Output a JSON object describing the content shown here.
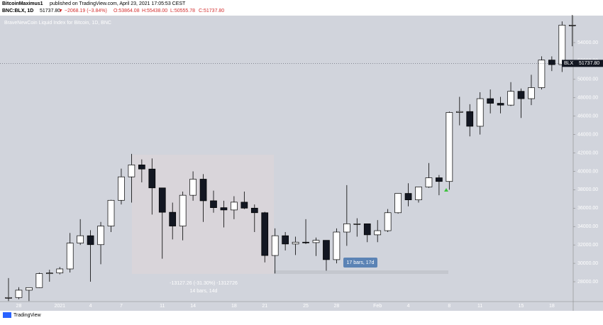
{
  "header": {
    "author": "BitcoinMaximus1",
    "published": "published on TradingView.com, April 23, 2021 17:05:53 CEST",
    "symbol": "BNC:BLX, 1D",
    "last": "51737.80",
    "change": "▼ −2068.19 (−3.84%)",
    "open": "O:53864.08",
    "high": "H:55438.00",
    "low": "L:50555.78",
    "close": "C:51737.80"
  },
  "footer": {
    "brand": "TradingView"
  },
  "chart_data": {
    "type": "candlestick",
    "watermark": "BraveNewCoin Liquid Index for Bitcoin, 1D, BNC",
    "categories": [
      null,
      "28",
      null,
      null,
      null,
      "2021",
      null,
      null,
      "4",
      null,
      null,
      "7",
      null,
      null,
      null,
      "11",
      null,
      null,
      "14",
      null,
      null,
      null,
      "18",
      null,
      null,
      "21",
      null,
      null,
      null,
      "25",
      null,
      null,
      "28",
      null,
      null,
      null,
      "Feb",
      null,
      null,
      "4",
      null,
      null,
      null,
      "8",
      null,
      null,
      "11",
      null,
      null,
      null,
      "15",
      null,
      null,
      "18",
      null,
      null
    ],
    "series": [
      {
        "name": "open",
        "values": [
          26270,
          26280,
          27080,
          27360,
          28880,
          28950,
          29390,
          32200,
          33000,
          32030,
          34050,
          36850,
          39400,
          40700,
          40250,
          38200,
          35550,
          34050,
          37400,
          39150,
          36800,
          36050,
          35800,
          36650,
          36000,
          35500,
          30850,
          33000,
          32100,
          32300,
          32250,
          32500,
          30400,
          33400,
          34300,
          34300,
          33100,
          33550,
          35500,
          37600,
          36900,
          38300,
          39300,
          38900,
          46400,
          46500,
          44900,
          47900,
          47400,
          47200,
          48700,
          47900,
          49100,
          52100,
          51600,
          55900
        ]
      },
      {
        "name": "high",
        "values": [
          28400,
          27400,
          27370,
          28990,
          29300,
          29600,
          33300,
          34800,
          33600,
          34500,
          36900,
          40300,
          41900,
          41300,
          41400,
          38200,
          36600,
          37800,
          40000,
          39700,
          37900,
          36800,
          37300,
          37800,
          36400,
          35600,
          33800,
          33400,
          32900,
          34800,
          32800,
          32500,
          33800,
          38500,
          34900,
          34300,
          34700,
          35900,
          37600,
          38700,
          38300,
          40900,
          39600,
          46500,
          48100,
          47300,
          48600,
          48900,
          48100,
          49700,
          49000,
          50500,
          52500,
          52500,
          56300,
          57000
        ]
      },
      {
        "name": "low",
        "values": [
          25900,
          26100,
          25900,
          27320,
          28000,
          28800,
          29000,
          32000,
          28000,
          29900,
          33400,
          36400,
          36600,
          38800,
          35300,
          30500,
          32600,
          32500,
          36800,
          34500,
          35500,
          33900,
          34800,
          35900,
          33400,
          30100,
          28900,
          31400,
          30900,
          32100,
          30800,
          29200,
          30000,
          31900,
          32900,
          32300,
          32300,
          33400,
          35400,
          36200,
          36600,
          38200,
          37400,
          38000,
          45000,
          43800,
          44000,
          46300,
          46300,
          47100,
          45800,
          47200,
          48900,
          50900,
          50800,
          53600
        ]
      },
      {
        "name": "close",
        "values": [
          26280,
          27080,
          27360,
          28880,
          28950,
          29390,
          32200,
          33000,
          32030,
          34050,
          36850,
          39400,
          40700,
          40250,
          38200,
          35550,
          34050,
          37400,
          39150,
          36800,
          36050,
          35800,
          36650,
          36000,
          35500,
          30850,
          33000,
          32100,
          32300,
          32250,
          32500,
          30400,
          33400,
          34300,
          34300,
          33100,
          33550,
          35500,
          37600,
          36900,
          38300,
          39300,
          38900,
          46400,
          46500,
          44900,
          47900,
          47400,
          47200,
          48700,
          47900,
          49100,
          52100,
          51600,
          55900,
          55900
        ]
      }
    ],
    "ylim": [
      25840,
      56930
    ],
    "yticks": [
      {
        "value": 28000,
        "label": "28000.00"
      },
      {
        "value": 30000,
        "label": "30000.00"
      },
      {
        "value": 32000,
        "label": "32000.00"
      },
      {
        "value": 34000,
        "label": "34000.00"
      },
      {
        "value": 36000,
        "label": "36000.00"
      },
      {
        "value": 38000,
        "label": "38000.00"
      },
      {
        "value": 40000,
        "label": "40000.00"
      },
      {
        "value": 42000,
        "label": "42000.00"
      },
      {
        "value": 44000,
        "label": "44000.00"
      },
      {
        "value": 46000,
        "label": "46000.00"
      },
      {
        "value": 48000,
        "label": "48000.00"
      },
      {
        "value": 50000,
        "label": "50000.00"
      },
      {
        "value": 52000,
        "label": "52000.00"
      },
      {
        "value": 54000,
        "label": "54000.00"
      }
    ],
    "price_tag": {
      "symbol": "BLX",
      "value": 51737.8,
      "label": "51737.80"
    },
    "annotations": {
      "range_change": "-13127.26 (-31.30%) -1312726",
      "range_bars": "14 bars, 14d",
      "second_bars": "17 bars, 17d"
    }
  }
}
